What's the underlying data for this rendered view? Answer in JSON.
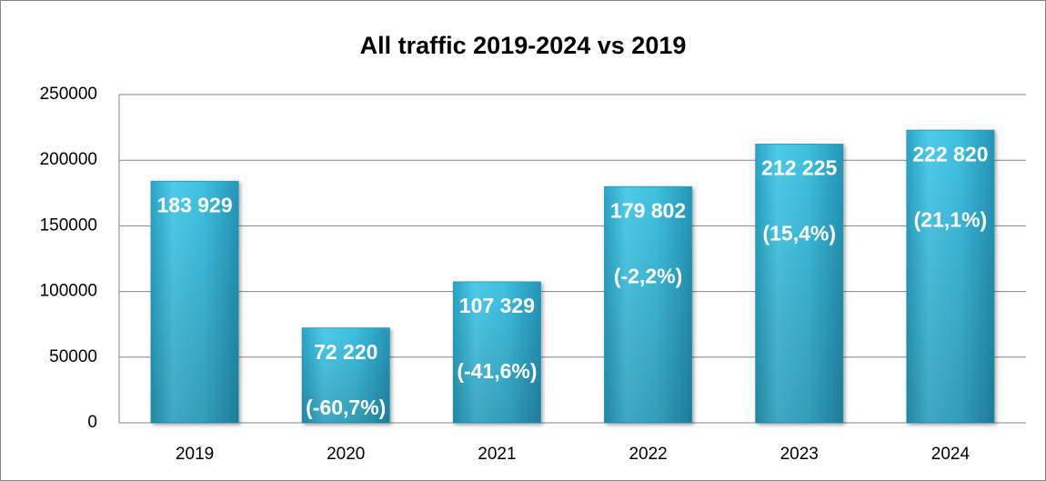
{
  "chart_data": {
    "type": "bar",
    "title": "All traffic 2019-2024 vs 2019",
    "categories": [
      "2019",
      "2020",
      "2021",
      "2022",
      "2023",
      "2024"
    ],
    "values": [
      183929,
      72220,
      107329,
      179802,
      212225,
      222820
    ],
    "value_labels": [
      "183 929",
      "72 220",
      "107 329",
      "179 802",
      "212 225",
      "222 820"
    ],
    "changes": [
      null,
      -60.7,
      -41.6,
      -2.2,
      15.4,
      21.1
    ],
    "change_labels": [
      null,
      "(-60,7%)",
      "(-41,6%)",
      "(-2,2%)",
      "(15,4%)",
      "(21,1%)"
    ],
    "color": "#3cbde0",
    "ylim": [
      0,
      250000
    ],
    "yticks": [
      0,
      50000,
      100000,
      150000,
      200000,
      250000
    ],
    "grid": true
  }
}
